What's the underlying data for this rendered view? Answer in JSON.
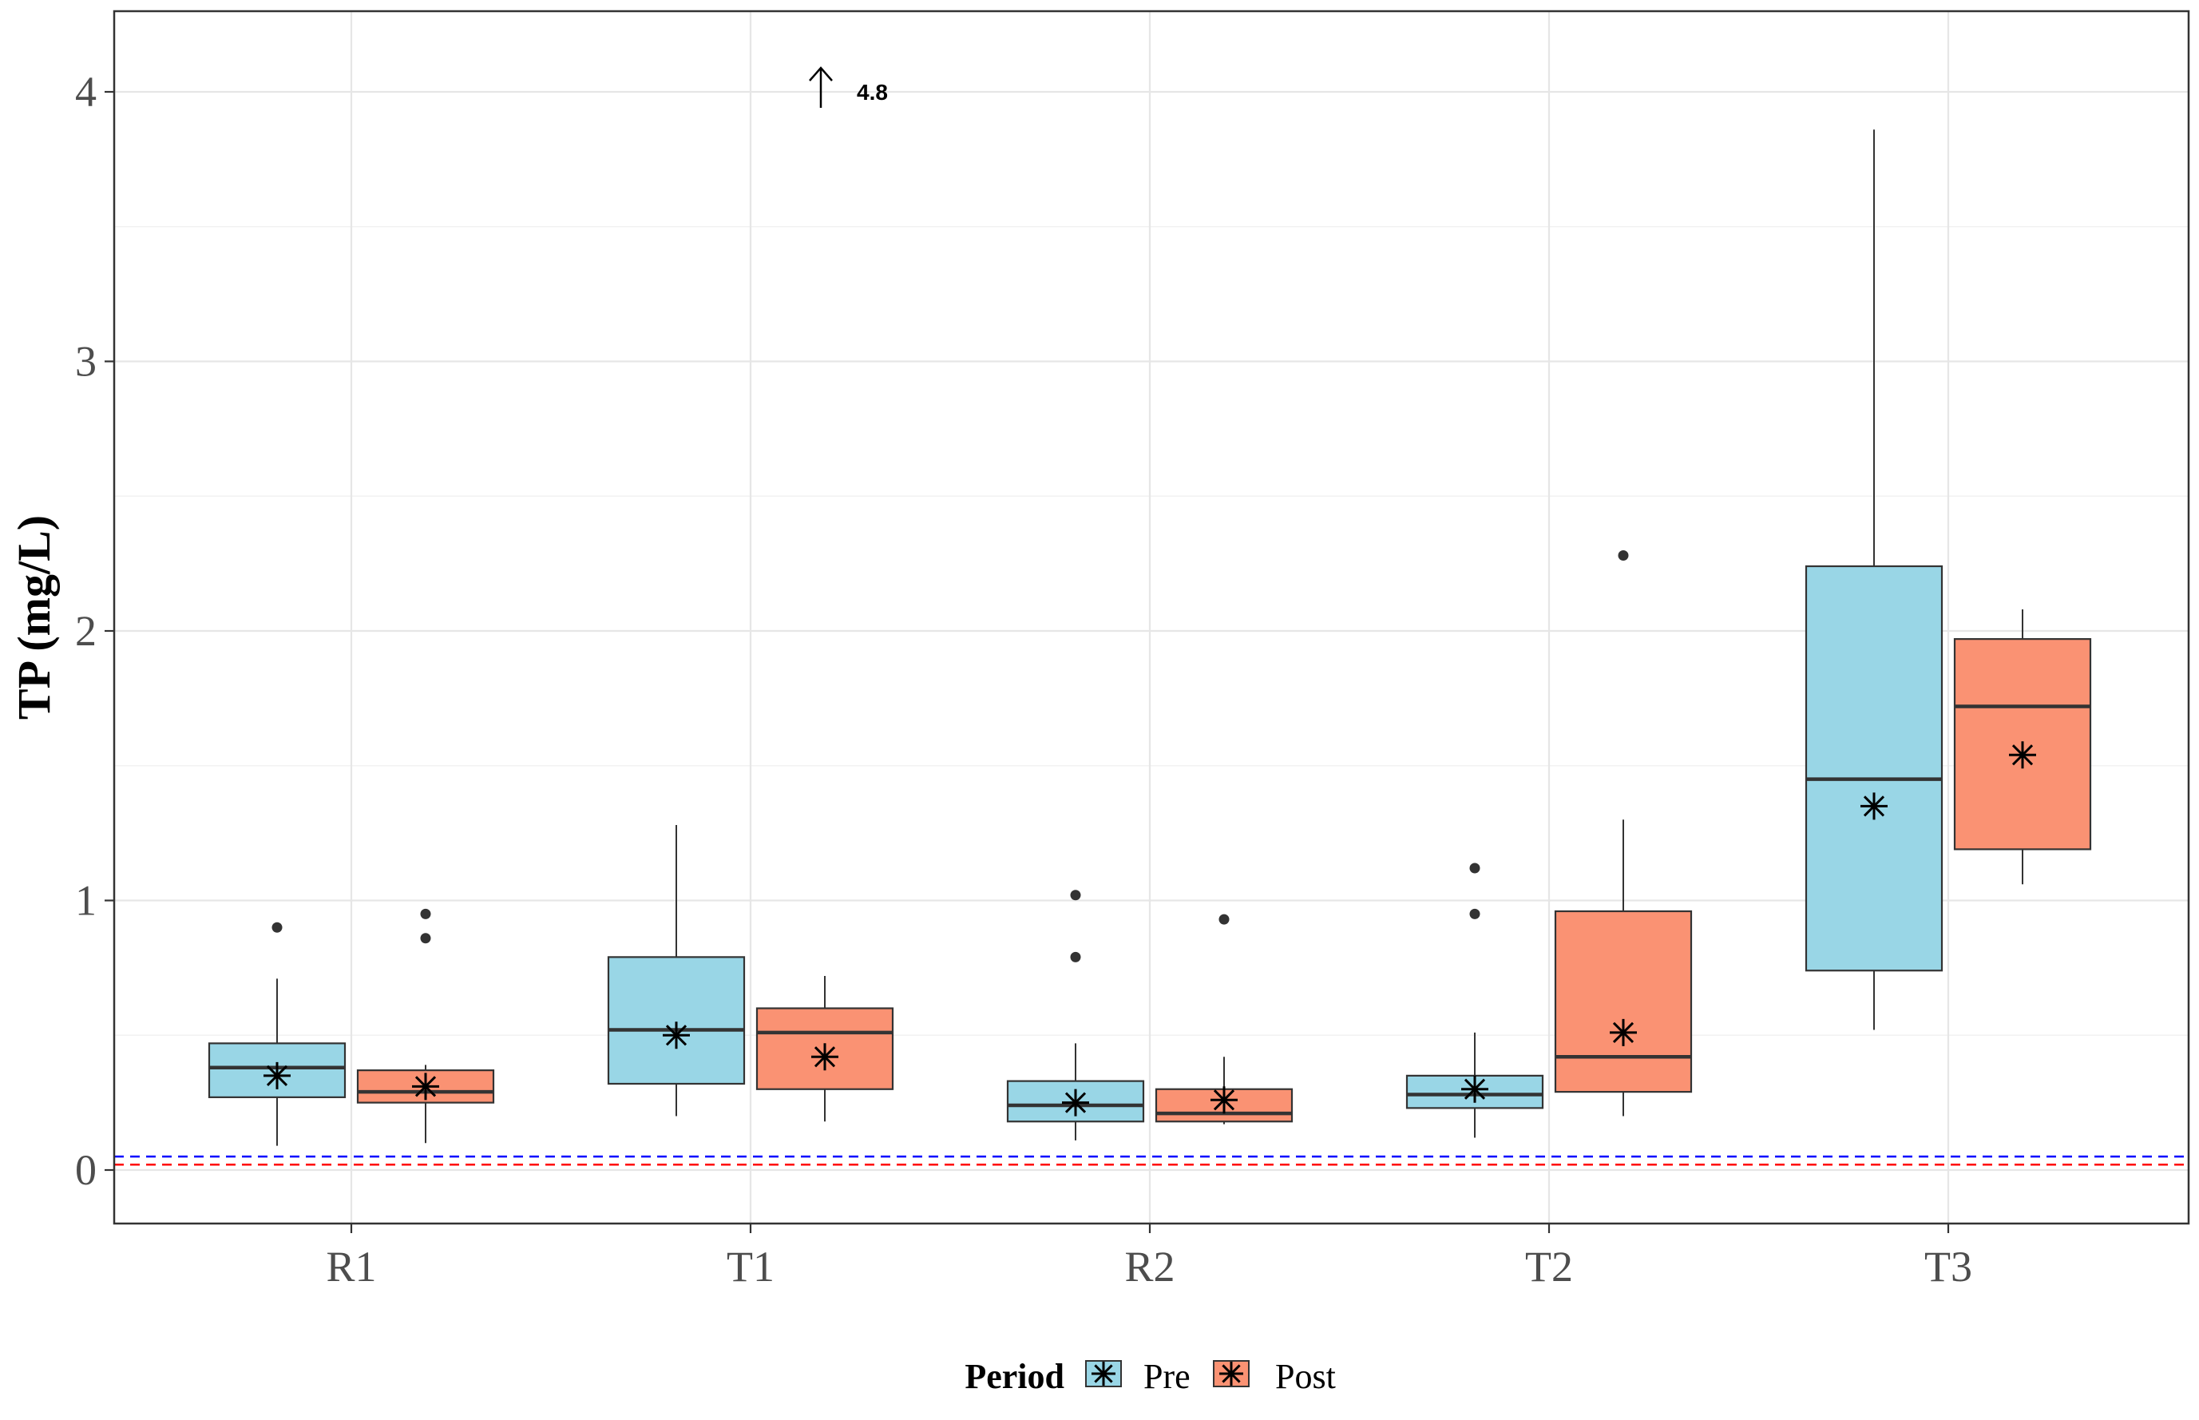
{
  "chart_data": {
    "type": "boxplot",
    "title": "",
    "xlabel": "",
    "ylabel": "TP (mg/L)",
    "ylim": [
      -0.2,
      4.3
    ],
    "yticks": [
      0,
      1,
      2,
      3,
      4
    ],
    "ytick_labels": [
      "0",
      "1",
      "2",
      "3",
      "4"
    ],
    "grid": true,
    "categories": [
      "R1",
      "T1",
      "R2",
      "T2",
      "T3"
    ],
    "legend": {
      "title": "Period",
      "position": "bottom",
      "entries": [
        {
          "name": "Pre",
          "color": "#99D6E6"
        },
        {
          "name": "Post",
          "color": "#FA9273"
        }
      ]
    },
    "series": [
      {
        "name": "Pre",
        "color": "#99D6E6",
        "boxes": [
          {
            "category": "R1",
            "whisker_low": 0.09,
            "q1": 0.27,
            "median": 0.38,
            "q3": 0.47,
            "whisker_high": 0.71,
            "mean": 0.35,
            "outliers": [
              0.9
            ]
          },
          {
            "category": "T1",
            "whisker_low": 0.2,
            "q1": 0.32,
            "median": 0.52,
            "q3": 0.79,
            "whisker_high": 1.28,
            "mean": 0.5,
            "outliers": []
          },
          {
            "category": "R2",
            "whisker_low": 0.11,
            "q1": 0.18,
            "median": 0.24,
            "q3": 0.33,
            "whisker_high": 0.47,
            "mean": 0.25,
            "outliers": [
              0.79,
              1.02
            ]
          },
          {
            "category": "T2",
            "whisker_low": 0.12,
            "q1": 0.23,
            "median": 0.28,
            "q3": 0.35,
            "whisker_high": 0.51,
            "mean": 0.3,
            "outliers": [
              0.95,
              1.12
            ]
          },
          {
            "category": "T3",
            "whisker_low": 0.52,
            "q1": 0.74,
            "median": 1.45,
            "q3": 2.24,
            "whisker_high": 3.86,
            "mean": 1.35,
            "outliers": []
          }
        ]
      },
      {
        "name": "Post",
        "color": "#FA9273",
        "boxes": [
          {
            "category": "R1",
            "whisker_low": 0.1,
            "q1": 0.25,
            "median": 0.29,
            "q3": 0.37,
            "whisker_high": 0.39,
            "mean": 0.31,
            "outliers": [
              0.86,
              0.95
            ]
          },
          {
            "category": "T1",
            "whisker_low": 0.18,
            "q1": 0.3,
            "median": 0.51,
            "q3": 0.6,
            "whisker_high": 0.72,
            "mean": 0.42,
            "outliers": []
          },
          {
            "category": "R2",
            "whisker_low": 0.17,
            "q1": 0.18,
            "median": 0.21,
            "q3": 0.3,
            "whisker_high": 0.42,
            "mean": 0.26,
            "outliers": [
              0.93
            ]
          },
          {
            "category": "T2",
            "whisker_low": 0.2,
            "q1": 0.29,
            "median": 0.42,
            "q3": 0.96,
            "whisker_high": 1.3,
            "mean": 0.51,
            "outliers": [
              2.28
            ]
          },
          {
            "category": "T3",
            "whisker_low": 1.06,
            "q1": 1.19,
            "median": 1.72,
            "q3": 1.97,
            "whisker_high": 2.08,
            "mean": 1.54,
            "outliers": []
          }
        ]
      }
    ],
    "reference_lines": [
      {
        "y": 0.05,
        "color": "#0000FF",
        "style": "dashed"
      },
      {
        "y": 0.02,
        "color": "#FF0000",
        "style": "dashed"
      }
    ],
    "annotations": [
      {
        "text": "4.8",
        "x_category": "T1",
        "series": "Post",
        "y": 4.0,
        "arrow": "up",
        "note_value": 4.8
      }
    ]
  }
}
